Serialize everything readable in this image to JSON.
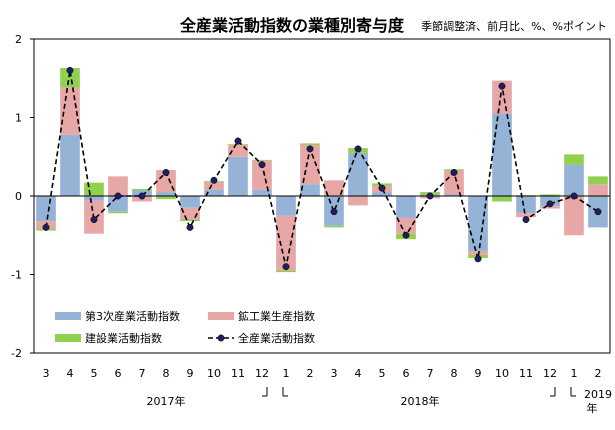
{
  "chart_data": {
    "type": "bar",
    "title": "全産業活動指数の業種別寄与度",
    "subtitle": "季節調整済、前月比、%、%ポイント",
    "categories": [
      "3",
      "4",
      "5",
      "6",
      "7",
      "8",
      "9",
      "10",
      "11",
      "12",
      "1",
      "2",
      "3",
      "4",
      "5",
      "6",
      "7",
      "8",
      "9",
      "10",
      "11",
      "12",
      "1",
      "2"
    ],
    "year_labels": [
      {
        "label": "2017年",
        "from": 0,
        "to": 9
      },
      {
        "label": "2018年",
        "from": 10,
        "to": 21
      },
      {
        "label": "2019年",
        "from": 22,
        "to": 23
      }
    ],
    "ylim": [
      -2,
      2
    ],
    "yticks": [
      2,
      1,
      0,
      -1,
      -2
    ],
    "grid": false,
    "legend_position": "lower-left",
    "series": [
      {
        "name": "第3次産業活動指数",
        "kind": "bar",
        "color": "#95b3d7",
        "values": [
          -0.32,
          0.78,
          -0.06,
          -0.2,
          0.07,
          0.05,
          -0.15,
          0.08,
          0.5,
          0.08,
          -0.25,
          0.15,
          -0.38,
          0.55,
          0.05,
          -0.28,
          0.02,
          0.02,
          -0.7,
          1.05,
          -0.22,
          -0.13,
          0.4,
          -0.4
        ]
      },
      {
        "name": "鉱工業生産指数",
        "kind": "bar",
        "color": "#e6a7a6",
        "values": [
          -0.1,
          0.6,
          -0.42,
          0.25,
          -0.07,
          0.28,
          -0.15,
          0.1,
          0.15,
          0.37,
          -0.7,
          0.5,
          0.2,
          -0.12,
          0.08,
          -0.2,
          -0.03,
          0.3,
          -0.05,
          0.42,
          -0.05,
          -0.03,
          -0.5,
          0.15
        ]
      },
      {
        "name": "建設業活動指数",
        "kind": "bar",
        "color": "#92d050",
        "values": [
          -0.02,
          0.25,
          0.17,
          -0.02,
          0.02,
          -0.04,
          -0.02,
          0.01,
          0.01,
          0.01,
          -0.02,
          0.02,
          -0.02,
          0.06,
          0.03,
          -0.07,
          0.03,
          0.02,
          -0.04,
          -0.07,
          0.01,
          0.02,
          0.13,
          0.1
        ]
      },
      {
        "name": "全産業活動指数",
        "kind": "line",
        "color": "#000000",
        "marker_color": "#1f1f5f",
        "values": [
          -0.4,
          1.6,
          -0.3,
          0.0,
          0.0,
          0.3,
          -0.4,
          0.2,
          0.7,
          0.4,
          -0.9,
          0.6,
          -0.2,
          0.6,
          0.1,
          -0.5,
          0.0,
          0.3,
          -0.8,
          1.4,
          -0.3,
          -0.1,
          0.0,
          -0.2
        ]
      }
    ]
  }
}
